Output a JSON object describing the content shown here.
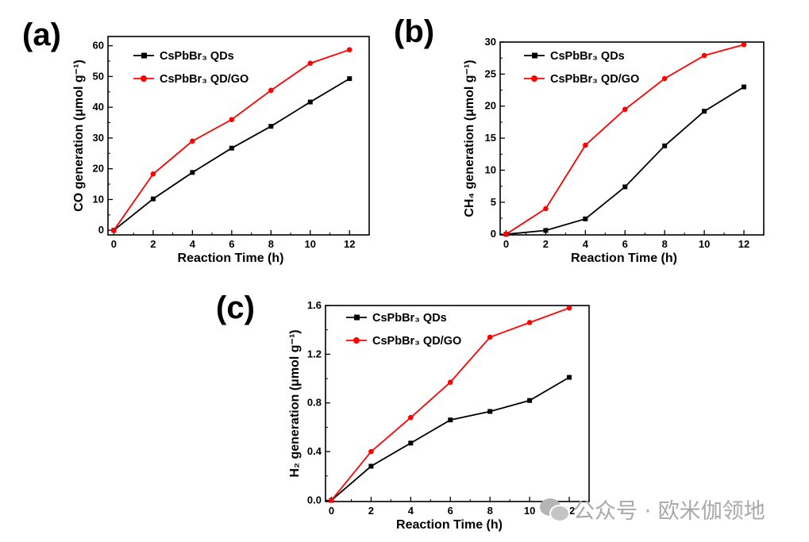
{
  "chart_data": [
    {
      "panel_label": "(a)",
      "type": "line",
      "xlabel": "Reaction Time (h)",
      "ylabel": "CO generation (μmol g⁻¹)",
      "x": [
        0,
        2,
        4,
        6,
        8,
        10,
        12
      ],
      "xlim": [
        -0.3,
        13
      ],
      "ylim": [
        -1.5,
        63
      ],
      "xticks": [
        0,
        2,
        4,
        6,
        8,
        10,
        12
      ],
      "yticks": [
        0,
        10,
        20,
        30,
        40,
        50,
        60
      ],
      "legend_placement": "top-left",
      "grid": false,
      "series": [
        {
          "name": "CsPbBr₃ QDs",
          "color": "#000000",
          "marker": "square",
          "values": [
            0,
            10.2,
            18.8,
            26.7,
            33.8,
            41.7,
            49.3
          ]
        },
        {
          "name": "CsPbBr₃ QD/GO",
          "color": "#ff0000",
          "marker": "circle",
          "values": [
            0,
            18.3,
            29.0,
            36.0,
            45.5,
            54.3,
            58.7
          ]
        }
      ]
    },
    {
      "panel_label": "(b)",
      "type": "line",
      "xlabel": "Reaction Time (h)",
      "ylabel": "CH₄ generation (μmol g⁻¹)",
      "x": [
        0,
        2,
        4,
        6,
        8,
        10,
        12
      ],
      "xlim": [
        -0.3,
        13
      ],
      "ylim": [
        -0.1,
        30
      ],
      "xticks": [
        0,
        2,
        4,
        6,
        8,
        10,
        12
      ],
      "yticks": [
        0,
        5,
        10,
        15,
        20,
        25,
        30
      ],
      "legend_placement": "top-left",
      "grid": false,
      "series": [
        {
          "name": "CsPbBr₃ QDs",
          "color": "#000000",
          "marker": "square",
          "values": [
            0,
            0.6,
            2.4,
            7.4,
            13.8,
            19.2,
            23.0
          ]
        },
        {
          "name": "CsPbBr₃ QD/GO",
          "color": "#ff0000",
          "marker": "circle",
          "values": [
            0,
            4.0,
            13.9,
            19.5,
            24.3,
            27.9,
            29.6
          ]
        }
      ]
    },
    {
      "panel_label": "(c)",
      "type": "line",
      "xlabel": "Reaction Time (h)",
      "ylabel": "H₂ generation (μmol g⁻¹)",
      "x": [
        0,
        2,
        4,
        6,
        8,
        10,
        12
      ],
      "xlim": [
        -0.3,
        13
      ],
      "ylim": [
        -0.01,
        1.6
      ],
      "xticks": [
        0,
        2,
        4,
        6,
        8,
        10,
        12
      ],
      "yticks": [
        0.0,
        0.4,
        0.8,
        1.2,
        1.6
      ],
      "ytick_labels": [
        "0.0",
        "0.4",
        "0.8",
        "1.2",
        "1.6"
      ],
      "legend_placement": "top-left",
      "grid": false,
      "series": [
        {
          "name": "CsPbBr₃ QDs",
          "color": "#000000",
          "marker": "square",
          "values": [
            0,
            0.28,
            0.47,
            0.66,
            0.73,
            0.82,
            1.01
          ]
        },
        {
          "name": "CsPbBr₃ QD/GO",
          "color": "#ff0000",
          "marker": "circle",
          "values": [
            0,
            0.4,
            0.68,
            0.97,
            1.34,
            1.46,
            1.58
          ]
        }
      ]
    }
  ],
  "watermark": "公众号 · 欧米伽领地"
}
